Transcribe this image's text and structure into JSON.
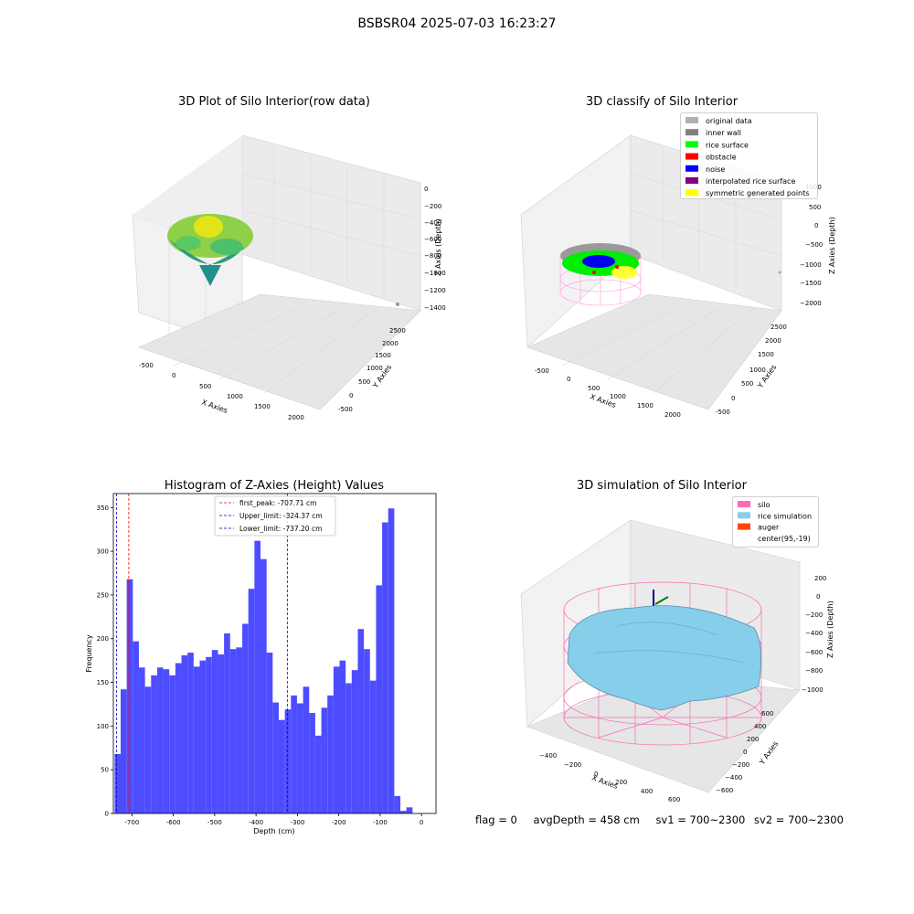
{
  "suptitle": "BSBSR04 2025-07-03 16:23:27",
  "panels": {
    "raw": {
      "title": "3D Plot of Silo Interior(row data)",
      "xlabel": "X Axies",
      "ylabel": "Y Axies",
      "zlabel": "Z Axies (Depth)",
      "xticks": [
        "-500",
        "0",
        "500",
        "1000",
        "1500",
        "2000"
      ],
      "yticks": [
        "-500",
        "0",
        "500",
        "1000",
        "1500",
        "2000",
        "2500"
      ],
      "zticks": [
        "0",
        "−200",
        "−400",
        "−600",
        "−800",
        "−1000",
        "−1200",
        "−1400"
      ]
    },
    "classify": {
      "title": "3D classify of Silo Interior",
      "xlabel": "X Axies",
      "ylabel": "Y Axies",
      "zlabel": "Z Axies (Depth)",
      "xticks": [
        "-500",
        "0",
        "500",
        "1000",
        "1500",
        "2000"
      ],
      "yticks": [
        "-500",
        "0",
        "500",
        "1000",
        "1500",
        "2000",
        "2500"
      ],
      "zticks": [
        "1000",
        "500",
        "0",
        "−500",
        "−1000",
        "−1500",
        "−2000"
      ],
      "legend": [
        {
          "label": "original data",
          "color": "#b0b0b0"
        },
        {
          "label": "inner wall",
          "color": "#808080"
        },
        {
          "label": "rice surface",
          "color": "#00ff00"
        },
        {
          "label": "obstacle",
          "color": "#ff0000"
        },
        {
          "label": "noise",
          "color": "#0000ff"
        },
        {
          "label": "interpolated rice surface",
          "color": "#800080"
        },
        {
          "label": "symmetric generated points",
          "color": "#ffff00"
        }
      ]
    },
    "simulation": {
      "title": "3D simulation of Silo Interior",
      "xlabel": "X Axies",
      "ylabel": "Y Axies",
      "zlabel": "Z Axies (Depth)",
      "xticks": [
        "−400",
        "−200",
        "0",
        "200",
        "400",
        "600"
      ],
      "yticks": [
        "−600",
        "−400",
        "−200",
        "0",
        "200",
        "400",
        "600"
      ],
      "zticks": [
        "200",
        "0",
        "−200",
        "−400",
        "−600",
        "−800",
        "−1000"
      ],
      "legend": [
        {
          "label": "silo",
          "color": "#ff69b4"
        },
        {
          "label": "rice simulation",
          "color": "#87ceeb"
        },
        {
          "label": "auger",
          "color": "#ff4500"
        },
        {
          "label": "center(95,-19)",
          "color": ""
        }
      ]
    }
  },
  "chart_data": {
    "type": "bar",
    "title": "Histogram of Z-Axies (Height) Values",
    "xlabel": "Depth (cm)",
    "ylabel": "Frequency",
    "xlim": [
      -745,
      35
    ],
    "ylim": [
      0,
      366
    ],
    "xticks": [
      -700,
      -600,
      -500,
      -400,
      -300,
      -200,
      -100,
      0
    ],
    "yticks": [
      0,
      50,
      100,
      150,
      200,
      250,
      300,
      350
    ],
    "bar_color": "#4d4dff",
    "bin_start": -742,
    "bin_width": 14.7,
    "values": [
      68,
      142,
      268,
      197,
      167,
      145,
      158,
      167,
      165,
      158,
      172,
      181,
      184,
      168,
      175,
      179,
      187,
      182,
      206,
      188,
      190,
      217,
      257,
      312,
      291,
      184,
      127,
      107,
      119,
      135,
      126,
      145,
      115,
      89,
      121,
      135,
      168,
      175,
      149,
      164,
      211,
      188,
      152,
      261,
      333,
      349,
      20,
      3,
      7
    ],
    "vlines": [
      {
        "label": "first_peak: -707.71 cm",
        "x": -707.71,
        "color": "#ff0000"
      },
      {
        "label": "Upper_limit: -324.37 cm",
        "x": -324.37,
        "color": "#0000cc"
      },
      {
        "label": "Lower_limit: -737.20 cm",
        "x": -737.2,
        "color": "#0000cc"
      }
    ],
    "legend_position": "upper center"
  },
  "footer": {
    "flag": "flag = 0",
    "avg": "avgDepth = 458 cm",
    "sv1": "sv1 = 700~2300",
    "sv2": "sv2 = 700~2300"
  }
}
